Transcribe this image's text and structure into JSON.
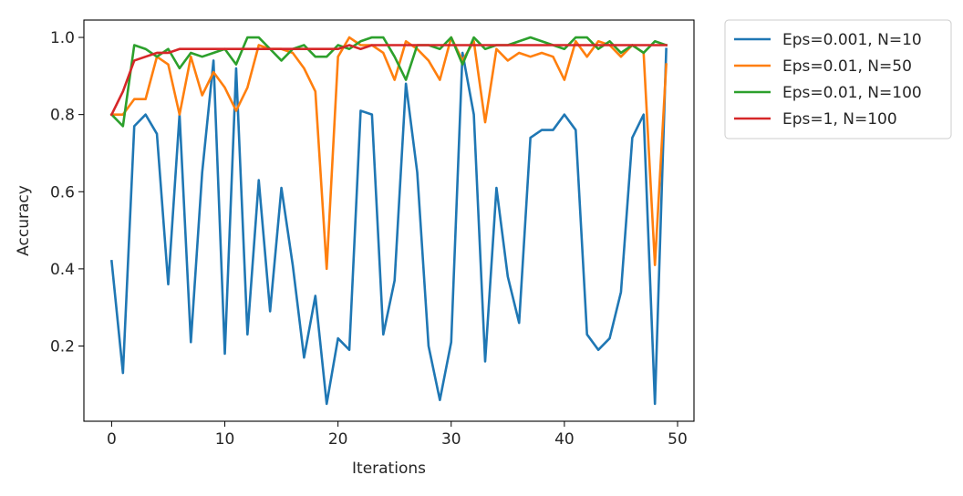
{
  "chart_data": {
    "type": "line",
    "title": "",
    "xlabel": "Iterations",
    "ylabel": "Accuracy",
    "xlim": [
      -2.45,
      51.45
    ],
    "ylim": [
      0.005,
      1.045
    ],
    "xticks": [
      0,
      10,
      20,
      30,
      40,
      50
    ],
    "yticks": [
      0.2,
      0.4,
      0.6,
      0.8,
      1.0
    ],
    "xtick_labels": [
      "0",
      "10",
      "20",
      "30",
      "40",
      "50"
    ],
    "ytick_labels": [
      "0.2",
      "0.4",
      "0.6",
      "0.8",
      "1.0"
    ],
    "grid": false,
    "legend_position": "outside-right-top",
    "x": [
      0,
      1,
      2,
      3,
      4,
      5,
      6,
      7,
      8,
      9,
      10,
      11,
      12,
      13,
      14,
      15,
      16,
      17,
      18,
      19,
      20,
      21,
      22,
      23,
      24,
      25,
      26,
      27,
      28,
      29,
      30,
      31,
      32,
      33,
      34,
      35,
      36,
      37,
      38,
      39,
      40,
      41,
      42,
      43,
      44,
      45,
      46,
      47,
      48,
      49
    ],
    "series": [
      {
        "name": "Eps=0.001, N=10",
        "color": "#1f77b4",
        "values": [
          0.42,
          0.13,
          0.77,
          0.8,
          0.75,
          0.36,
          0.8,
          0.21,
          0.65,
          0.94,
          0.18,
          0.92,
          0.23,
          0.63,
          0.29,
          0.61,
          0.41,
          0.17,
          0.33,
          0.05,
          0.22,
          0.19,
          0.81,
          0.8,
          0.23,
          0.37,
          0.88,
          0.65,
          0.2,
          0.06,
          0.21,
          0.96,
          0.8,
          0.16,
          0.61,
          0.38,
          0.26,
          0.74,
          0.76,
          0.76,
          0.8,
          0.76,
          0.23,
          0.19,
          0.22,
          0.34,
          0.74,
          0.8,
          0.05,
          0.97
        ]
      },
      {
        "name": "Eps=0.01, N=50",
        "color": "#ff7f0e",
        "values": [
          0.8,
          0.8,
          0.84,
          0.84,
          0.95,
          0.93,
          0.8,
          0.95,
          0.85,
          0.91,
          0.87,
          0.81,
          0.87,
          0.98,
          0.97,
          0.97,
          0.96,
          0.92,
          0.86,
          0.4,
          0.95,
          1.0,
          0.98,
          0.98,
          0.96,
          0.89,
          0.99,
          0.97,
          0.94,
          0.89,
          1.0,
          0.94,
          0.99,
          0.78,
          0.97,
          0.94,
          0.96,
          0.95,
          0.96,
          0.95,
          0.89,
          0.99,
          0.95,
          0.99,
          0.98,
          0.95,
          0.98,
          0.96,
          0.41,
          0.93
        ]
      },
      {
        "name": "Eps=0.01, N=100",
        "color": "#2ca02c",
        "values": [
          0.8,
          0.77,
          0.98,
          0.97,
          0.95,
          0.97,
          0.92,
          0.96,
          0.95,
          0.96,
          0.97,
          0.93,
          1.0,
          1.0,
          0.97,
          0.94,
          0.97,
          0.98,
          0.95,
          0.95,
          0.98,
          0.97,
          0.99,
          1.0,
          1.0,
          0.95,
          0.89,
          0.98,
          0.98,
          0.97,
          1.0,
          0.93,
          1.0,
          0.97,
          0.98,
          0.98,
          0.99,
          1.0,
          0.99,
          0.98,
          0.97,
          1.0,
          1.0,
          0.97,
          0.99,
          0.96,
          0.98,
          0.96,
          0.99,
          0.98
        ]
      },
      {
        "name": "Eps=1, N=100",
        "color": "#d62728",
        "values": [
          0.8,
          0.86,
          0.94,
          0.95,
          0.96,
          0.96,
          0.97,
          0.97,
          0.97,
          0.97,
          0.97,
          0.97,
          0.97,
          0.97,
          0.97,
          0.97,
          0.97,
          0.97,
          0.97,
          0.97,
          0.97,
          0.98,
          0.97,
          0.98,
          0.98,
          0.98,
          0.98,
          0.98,
          0.98,
          0.98,
          0.98,
          0.98,
          0.98,
          0.98,
          0.98,
          0.98,
          0.98,
          0.98,
          0.98,
          0.98,
          0.98,
          0.98,
          0.98,
          0.98,
          0.98,
          0.98,
          0.98,
          0.98,
          0.98,
          0.98
        ]
      }
    ]
  }
}
